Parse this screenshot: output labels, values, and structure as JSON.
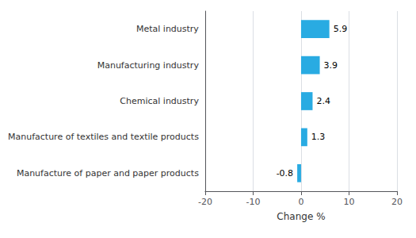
{
  "chart_data": {
    "type": "bar",
    "orientation": "horizontal",
    "categories": [
      "Manufacture of paper and paper products",
      "Manufacture of textiles and textile products",
      "Chemical industry",
      "Manufacturing industry",
      "Metal industry"
    ],
    "values": [
      -0.8,
      1.3,
      2.4,
      3.9,
      5.9
    ],
    "color": "#29ABE2",
    "xlabel": "Change %",
    "xlim": [
      -20,
      20
    ],
    "xticks": [
      -20,
      -10,
      0,
      10,
      20
    ],
    "grid": true,
    "data_labels": true
  }
}
